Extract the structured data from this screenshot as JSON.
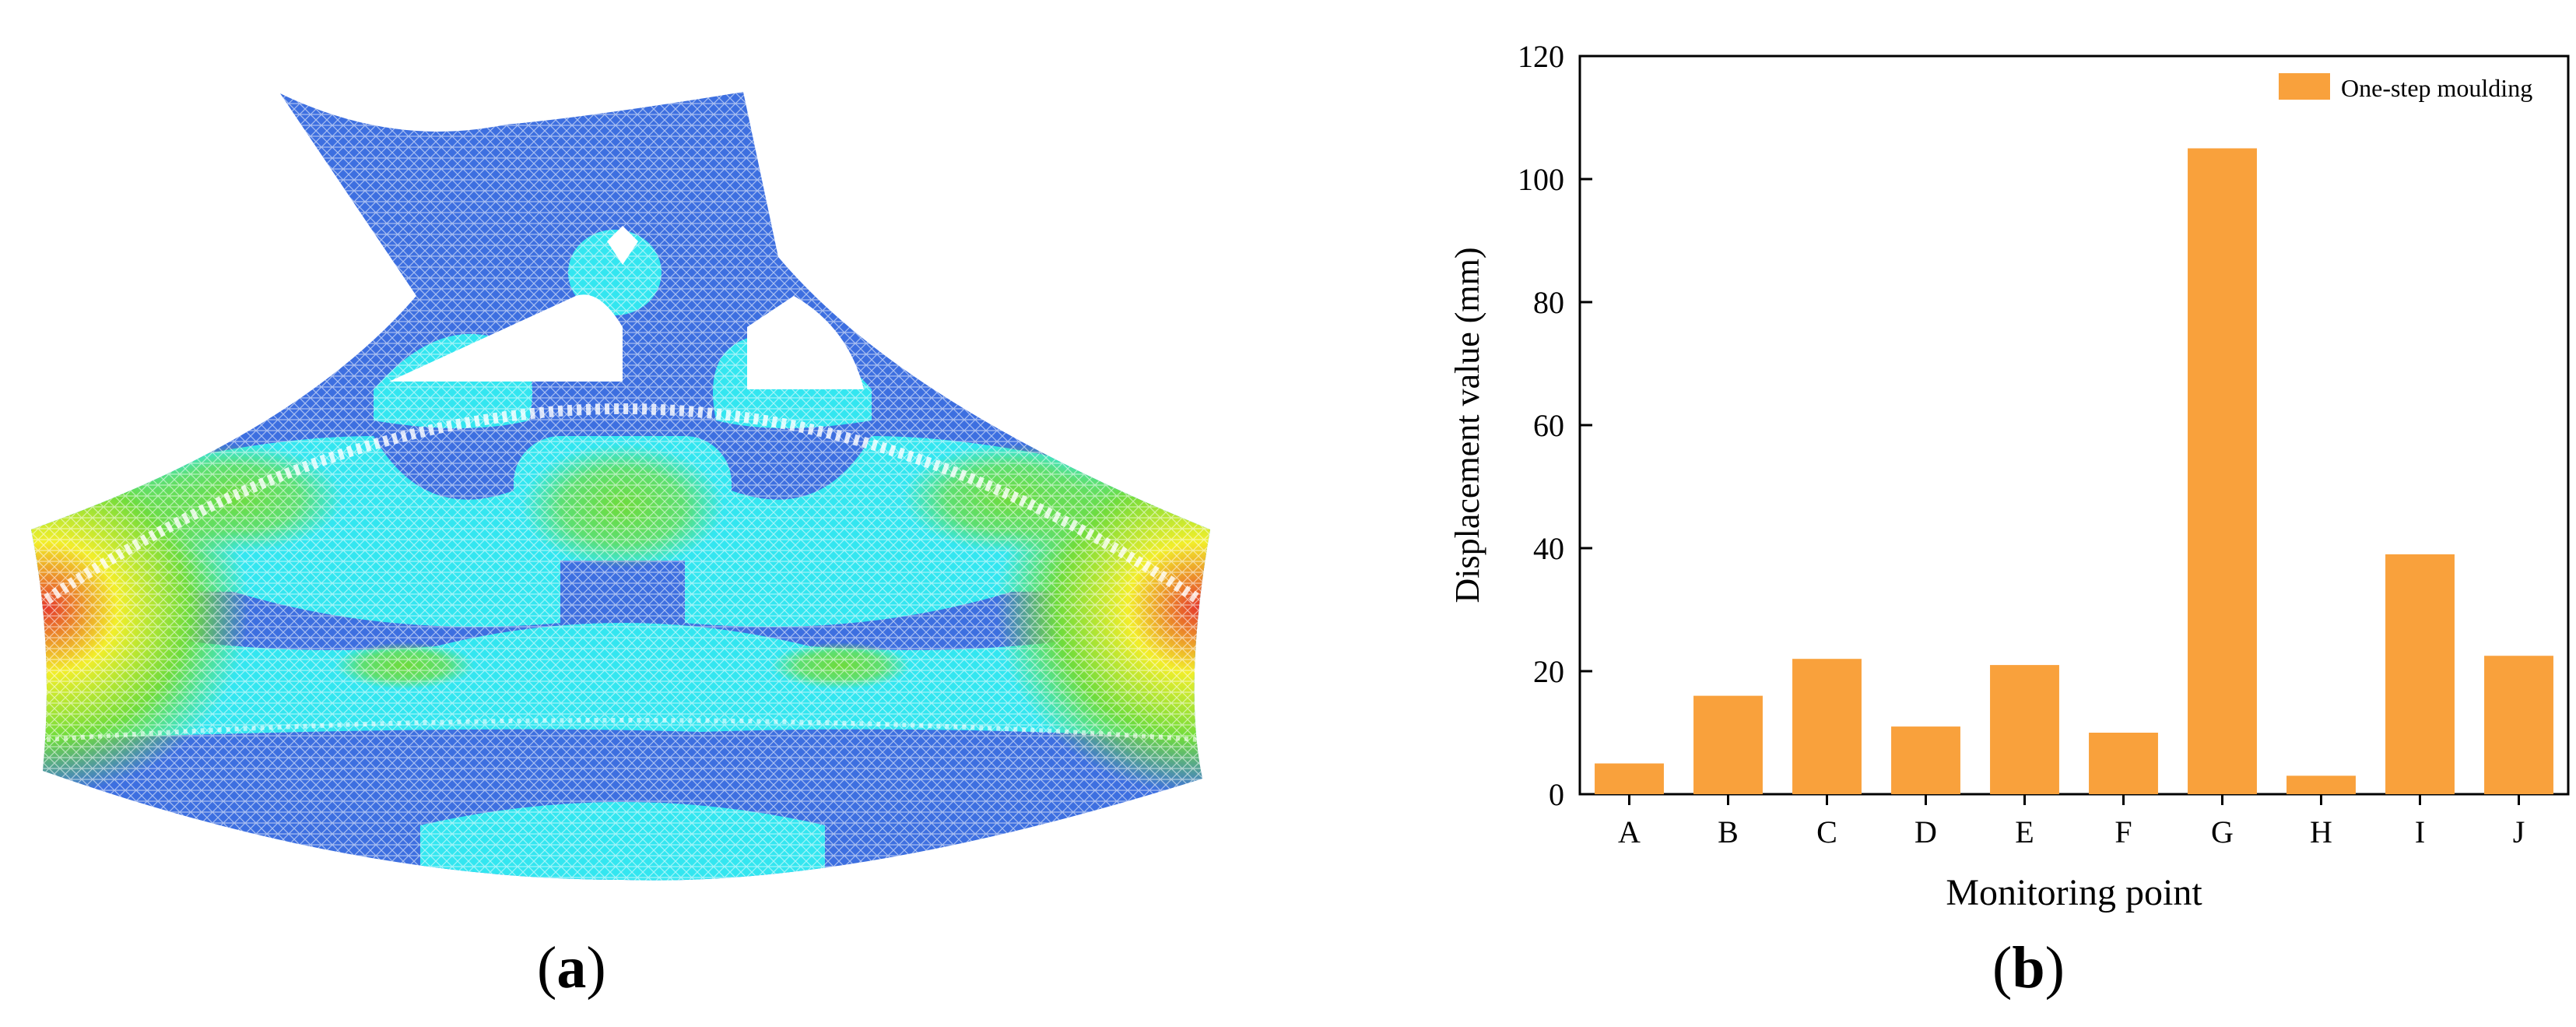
{
  "panels": {
    "a": {
      "label": "a"
    },
    "b": {
      "label": "b"
    }
  },
  "contour": {
    "colors": {
      "low": "#3d6fe0",
      "low_mid": "#33e6f0",
      "mid": "#6fdc3c",
      "high": "#f2ee2a",
      "peak": "#e5392b"
    }
  },
  "chart_data": {
    "type": "bar",
    "categories": [
      "A",
      "B",
      "C",
      "D",
      "E",
      "F",
      "G",
      "H",
      "I",
      "J"
    ],
    "series": [
      {
        "name": "One-step moulding",
        "values": [
          5,
          16,
          22,
          11,
          21,
          10,
          105,
          3,
          39,
          22.5
        ]
      }
    ],
    "xlabel": "Monitoring point",
    "ylabel": "Displacement value (mm)",
    "ylim": [
      0,
      120
    ],
    "yticks": [
      0,
      20,
      40,
      60,
      80,
      100,
      120
    ],
    "bar_color": "#f9a13c",
    "legend_position": "top-right",
    "grid": false
  }
}
